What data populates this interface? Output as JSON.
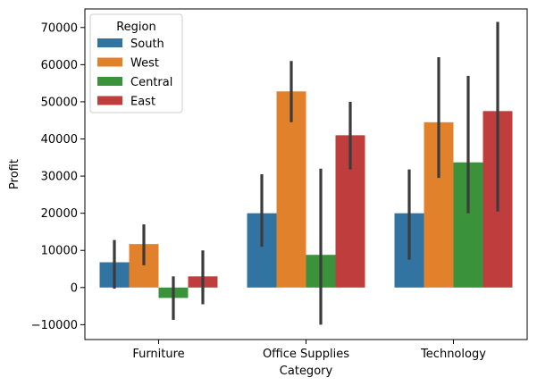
{
  "chart_data": {
    "type": "bar",
    "xlabel": "Category",
    "ylabel": "Profit",
    "categories": [
      "Furniture",
      "Office Supplies",
      "Technology"
    ],
    "ylim": [
      -14000,
      75000
    ],
    "yticks": [
      -10000,
      0,
      10000,
      20000,
      30000,
      40000,
      50000,
      60000,
      70000
    ],
    "ytick_labels": [
      "−10000",
      "0",
      "10000",
      "20000",
      "30000",
      "40000",
      "50000",
      "60000",
      "70000"
    ],
    "legend": {
      "title": "Region",
      "placement": "top-left"
    },
    "series": [
      {
        "name": "South",
        "color": "#3274a1",
        "values": [
          6800,
          20000,
          20000
        ],
        "ci_low": [
          -300,
          11000,
          7500
        ],
        "ci_high": [
          12800,
          30500,
          31800
        ]
      },
      {
        "name": "West",
        "color": "#e1812c",
        "values": [
          11700,
          52800,
          44500
        ],
        "ci_low": [
          6000,
          44500,
          29500
        ],
        "ci_high": [
          17000,
          61000,
          62000
        ]
      },
      {
        "name": "Central",
        "color": "#3a923a",
        "values": [
          -2800,
          8800,
          33700
        ],
        "ci_low": [
          -8700,
          -10000,
          20000
        ],
        "ci_high": [
          3000,
          32000,
          57000
        ]
      },
      {
        "name": "East",
        "color": "#c03d3e",
        "values": [
          3000,
          41000,
          47500
        ],
        "ci_low": [
          -4500,
          31800,
          20500
        ],
        "ci_high": [
          10000,
          50000,
          71500
        ]
      }
    ],
    "error_bar_color": "#3b3b3b",
    "grid": false
  }
}
